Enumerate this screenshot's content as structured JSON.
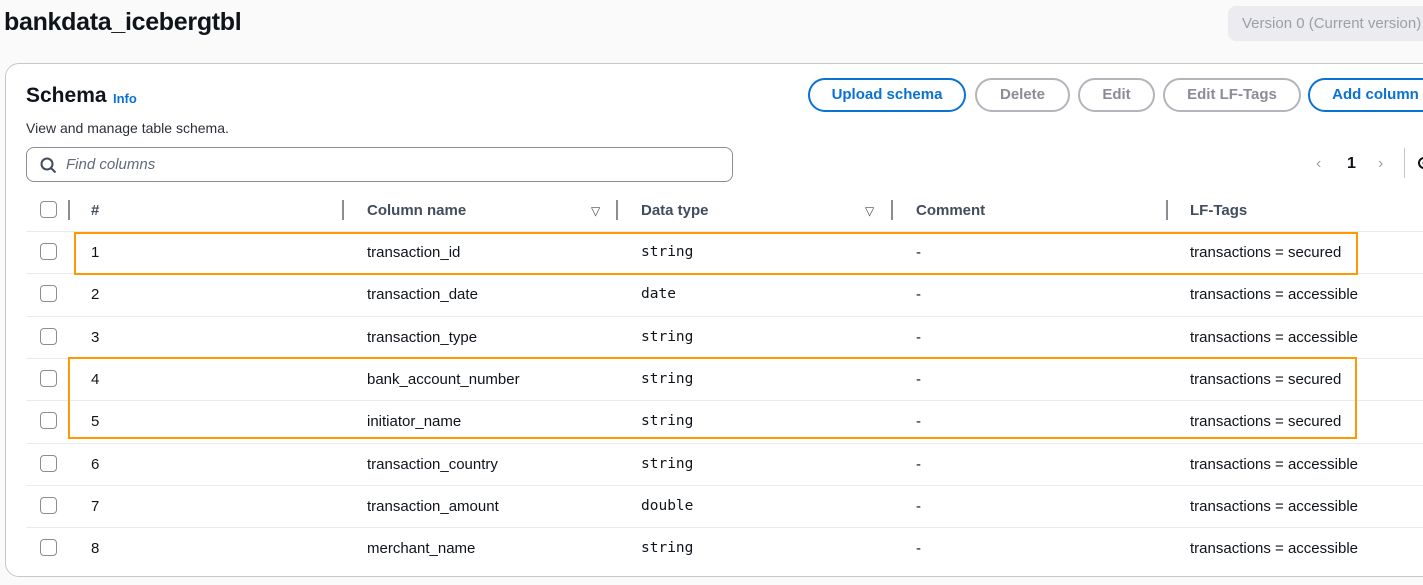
{
  "page": {
    "title": "bankdata_icebergtbl",
    "version_select": "Version 0 (Current version)"
  },
  "schema": {
    "heading": "Schema",
    "info_link": "Info",
    "description": "View and manage table schema.",
    "buttons": {
      "upload": "Upload schema",
      "delete": "Delete",
      "edit": "Edit",
      "edit_lf_tags": "Edit LF-Tags",
      "add_column": "Add column"
    },
    "search": {
      "placeholder": "Find columns",
      "value": ""
    },
    "pagination": {
      "current_page": "1"
    },
    "headers": {
      "number": "#",
      "column_name": "Column name",
      "data_type": "Data type",
      "comment": "Comment",
      "lf_tags": "LF-Tags"
    },
    "rows": [
      {
        "num": "1",
        "name": "transaction_id",
        "type": "string",
        "comment": "-",
        "tags": "transactions = secured",
        "highlighted": true
      },
      {
        "num": "2",
        "name": "transaction_date",
        "type": "date",
        "comment": "-",
        "tags": "transactions = accessible",
        "highlighted": false
      },
      {
        "num": "3",
        "name": "transaction_type",
        "type": "string",
        "comment": "-",
        "tags": "transactions = accessible",
        "highlighted": false
      },
      {
        "num": "4",
        "name": "bank_account_number",
        "type": "string",
        "comment": "-",
        "tags": "transactions = secured",
        "highlighted": true
      },
      {
        "num": "5",
        "name": "initiator_name",
        "type": "string",
        "comment": "-",
        "tags": "transactions = secured",
        "highlighted": true
      },
      {
        "num": "6",
        "name": "transaction_country",
        "type": "string",
        "comment": "-",
        "tags": "transactions = accessible",
        "highlighted": false
      },
      {
        "num": "7",
        "name": "transaction_amount",
        "type": "double",
        "comment": "-",
        "tags": "transactions = accessible",
        "highlighted": false
      },
      {
        "num": "8",
        "name": "merchant_name",
        "type": "string",
        "comment": "-",
        "tags": "transactions = accessible",
        "highlighted": false
      }
    ]
  },
  "colors": {
    "primary": "#0972d3",
    "highlight": "#ff9900"
  }
}
